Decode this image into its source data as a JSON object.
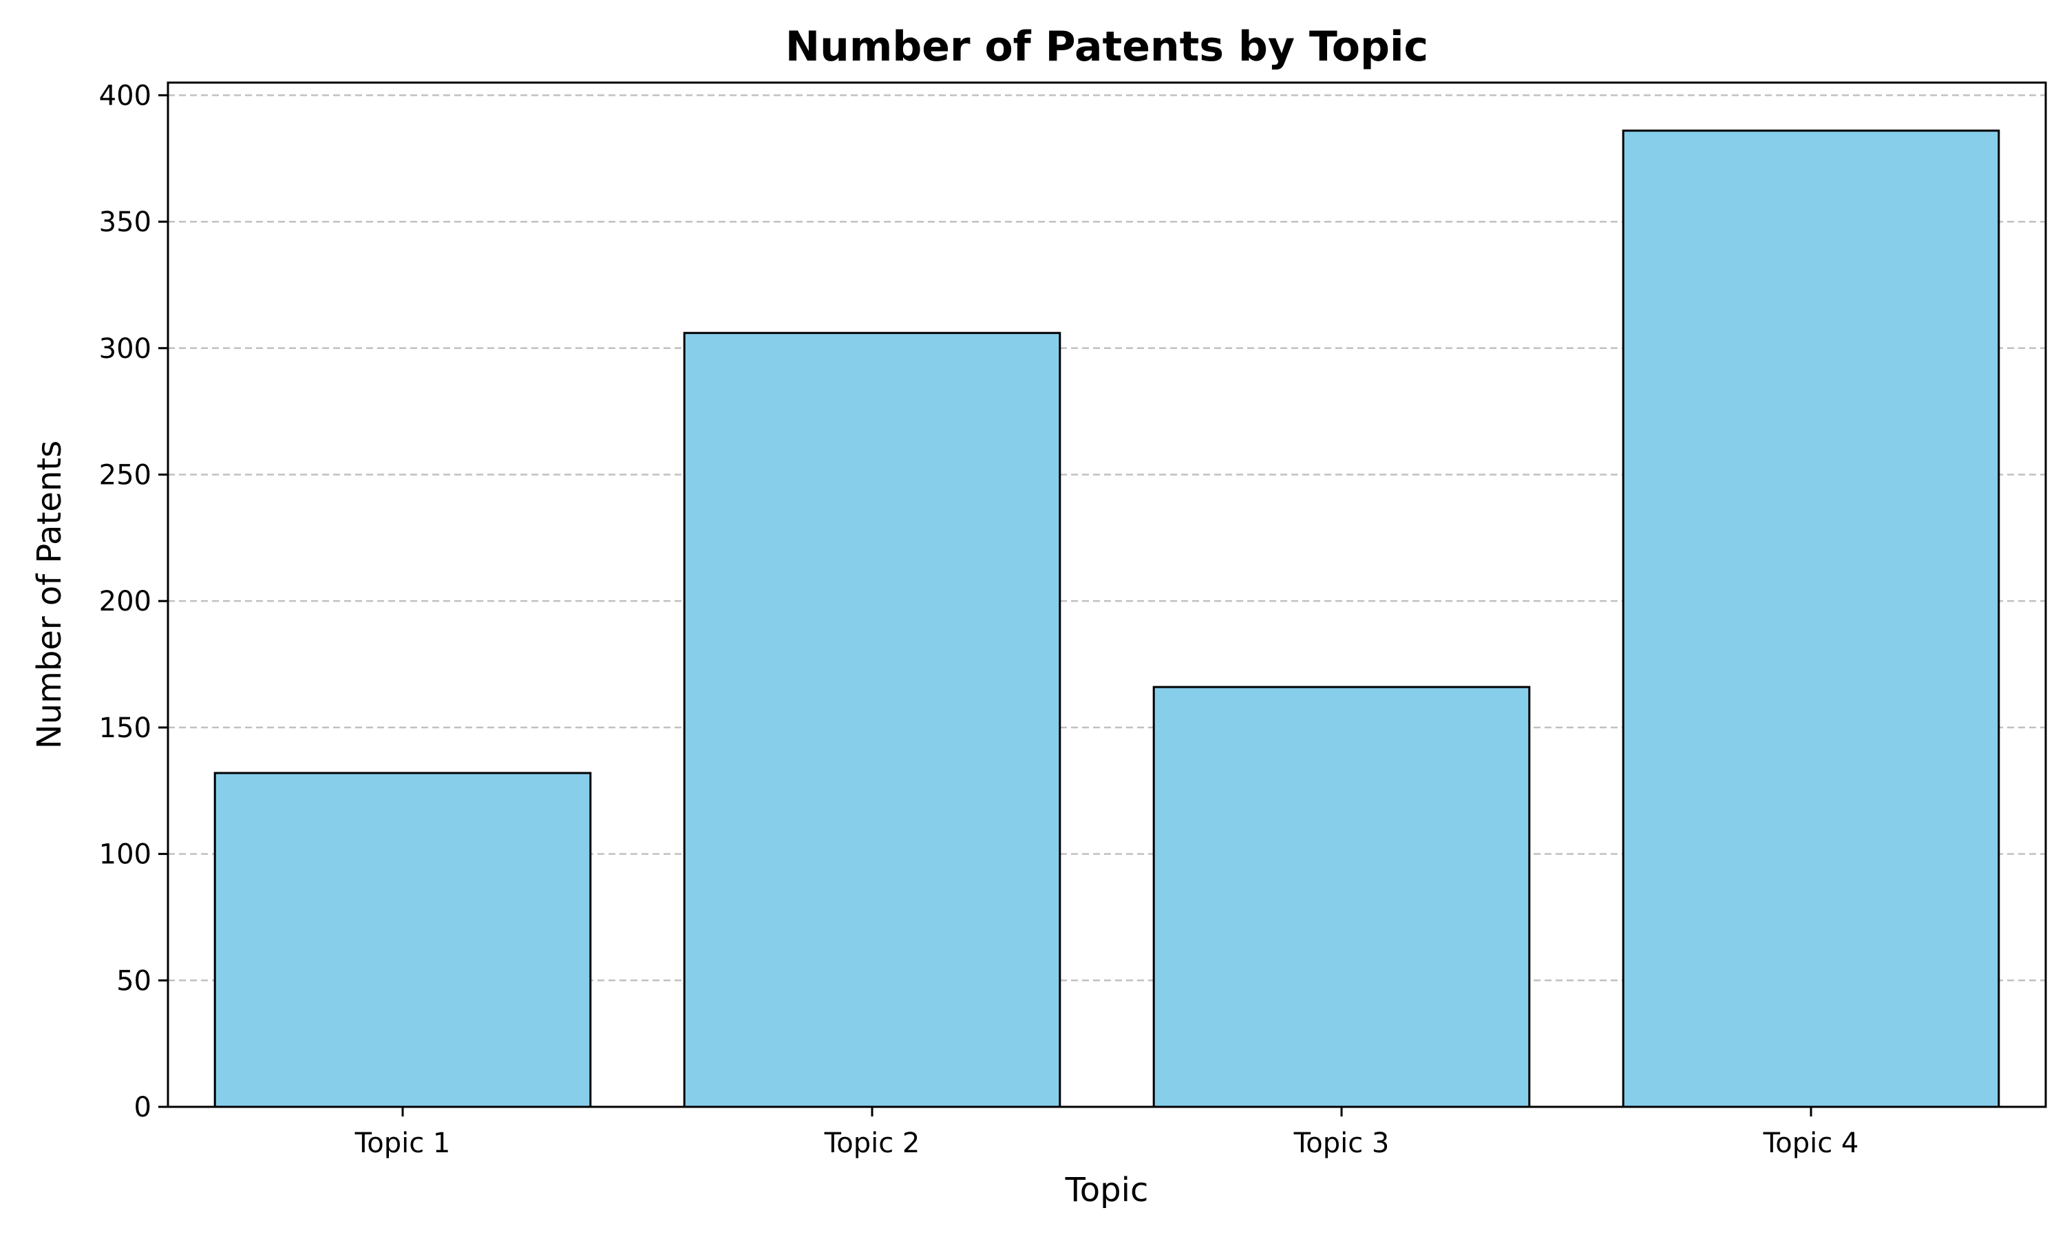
{
  "chart_data": {
    "type": "bar",
    "title": "Number of Patents by Topic",
    "xlabel": "Topic",
    "ylabel": "Number of Patents",
    "categories": [
      "Topic 1",
      "Topic 2",
      "Topic 3",
      "Topic 4"
    ],
    "values": [
      132,
      306,
      166,
      386
    ],
    "ylim": [
      0,
      405
    ],
    "yticks": [
      0,
      50,
      100,
      150,
      200,
      250,
      300,
      350,
      400
    ],
    "grid": "y-dashed",
    "bar_color": "#87ceeb",
    "bar_edge_color": "#000000",
    "grid_color": "#c0c0c0"
  }
}
